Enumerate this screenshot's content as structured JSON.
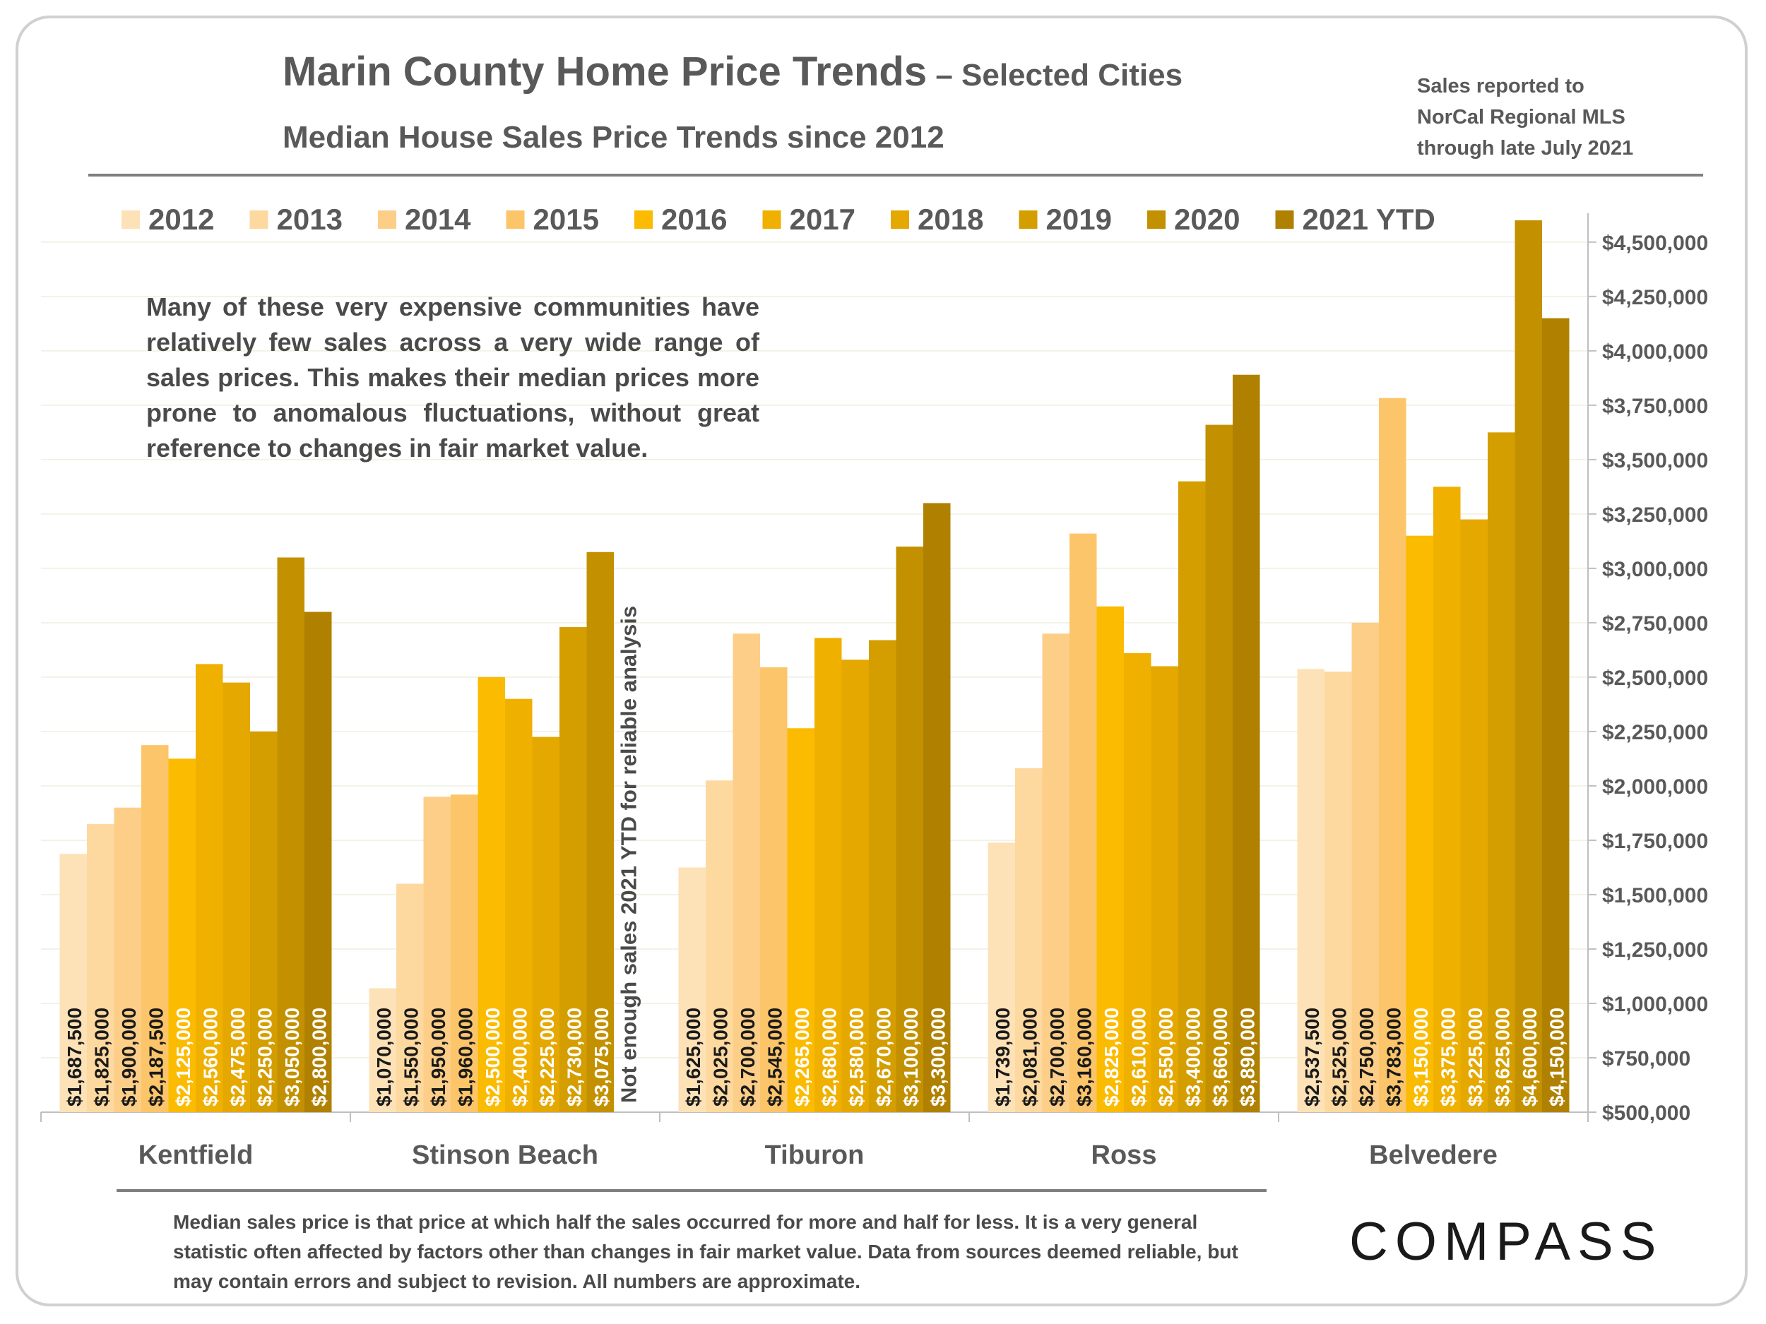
{
  "title_main": "Marin County Home Price Trends",
  "title_rest": " – Selected Cities",
  "subtitle": "Median House Sales Price Trends since 2012",
  "source_lines": [
    "Sales reported to",
    "NorCal Regional MLS",
    "through late July 2021"
  ],
  "note": "Many of these very expensive communities have relatively few sales across a very wide range of sales prices. This makes their median prices more prone to anomalous fluctuations, without great reference to changes in fair market value.",
  "footer": "Median sales price is that price at which half the sales occurred for more and half for less. It is a very general statistic often affected by factors other than changes in fair market value. Data from sources deemed reliable, but may contain errors and subject to revision. All numbers are approximate.",
  "logo_text": "COMPASS",
  "colors": {
    "text": "#595959",
    "series": [
      "#fde2b8",
      "#fdd9a0",
      "#fdce87",
      "#fcc56a",
      "#fbbb00",
      "#f0b000",
      "#e5a800",
      "#d49e00",
      "#c39100",
      "#b08100"
    ],
    "dark_label": "#1a1a1a",
    "light_label": "#ffffff"
  },
  "chart_data": {
    "type": "bar",
    "categories": [
      "Kentfield",
      "Stinson Beach",
      "Tiburon",
      "Ross",
      "Belvedere"
    ],
    "series": [
      {
        "name": "2012",
        "values": [
          1687500,
          1070000,
          1625000,
          1739000,
          2537500
        ],
        "labels": [
          "$1,687,500",
          "$1,070,000",
          "$1,625,000",
          "$1,739,000",
          "$2,537,500"
        ]
      },
      {
        "name": "2013",
        "values": [
          1825000,
          1550000,
          2025000,
          2081000,
          2525000
        ],
        "labels": [
          "$1,825,000",
          "$1,550,000",
          "$2,025,000",
          "$2,081,000",
          "$2,525,000"
        ]
      },
      {
        "name": "2014",
        "values": [
          1900000,
          1950000,
          2700000,
          2700000,
          2750000
        ],
        "labels": [
          "$1,900,000",
          "$1,950,000",
          "$2,700,000",
          "$2,700,000",
          "$2,750,000"
        ]
      },
      {
        "name": "2015",
        "values": [
          2187500,
          1960000,
          2545000,
          3160000,
          3783000
        ],
        "labels": [
          "$2,187,500",
          "$1,960,000",
          "$2,545,000",
          "$3,160,000",
          "$3,783,000"
        ]
      },
      {
        "name": "2016",
        "values": [
          2125000,
          2500000,
          2265000,
          2825000,
          3150000
        ],
        "labels": [
          "$2,125,000",
          "$2,500,000",
          "$2,265,000",
          "$2,825,000",
          "$3,150,000"
        ]
      },
      {
        "name": "2017",
        "values": [
          2560000,
          2400000,
          2680000,
          2610000,
          3375000
        ],
        "labels": [
          "$2,560,000",
          "$2,400,000",
          "$2,680,000",
          "$2,610,000",
          "$3,375,000"
        ]
      },
      {
        "name": "2018",
        "values": [
          2475000,
          2225000,
          2580000,
          2550000,
          3225000
        ],
        "labels": [
          "$2,475,000",
          "$2,225,000",
          "$2,580,000",
          "$2,550,000",
          "$3,225,000"
        ]
      },
      {
        "name": "2019",
        "values": [
          2250000,
          2730000,
          2670000,
          3400000,
          3625000
        ],
        "labels": [
          "$2,250,000",
          "$2,730,000",
          "$2,670,000",
          "$3,400,000",
          "$3,625,000"
        ]
      },
      {
        "name": "2020",
        "values": [
          3050000,
          3075000,
          3100000,
          3660000,
          4600000
        ],
        "labels": [
          "$3,050,000",
          "$3,075,000",
          "$3,100,000",
          "$3,660,000",
          "$4,600,000"
        ]
      },
      {
        "name": "2021 YTD",
        "values": [
          2800000,
          null,
          3300000,
          3890000,
          4150000
        ],
        "labels": [
          "$2,800,000",
          "",
          "$3,300,000",
          "$3,890,000",
          "$4,150,000"
        ]
      }
    ],
    "ylim": [
      500000,
      4600000
    ],
    "yticks": [
      500000,
      750000,
      1000000,
      1250000,
      1500000,
      1750000,
      2000000,
      2250000,
      2500000,
      2750000,
      3000000,
      3250000,
      3500000,
      3750000,
      4000000,
      4250000,
      4500000
    ],
    "ytick_labels": [
      "$500,000",
      "$750,000",
      "$1,000,000",
      "$1,250,000",
      "$1,500,000",
      "$1,750,000",
      "$2,000,000",
      "$2,250,000",
      "$2,500,000",
      "$2,750,000",
      "$3,000,000",
      "$3,250,000",
      "$3,500,000",
      "$3,750,000",
      "$4,000,000",
      "$4,250,000",
      "$4,500,000"
    ],
    "annotation": "Not enough sales 2021 YTD for reliable analysis",
    "legend_position": "top",
    "grid": true,
    "y_axis_side": "right"
  }
}
